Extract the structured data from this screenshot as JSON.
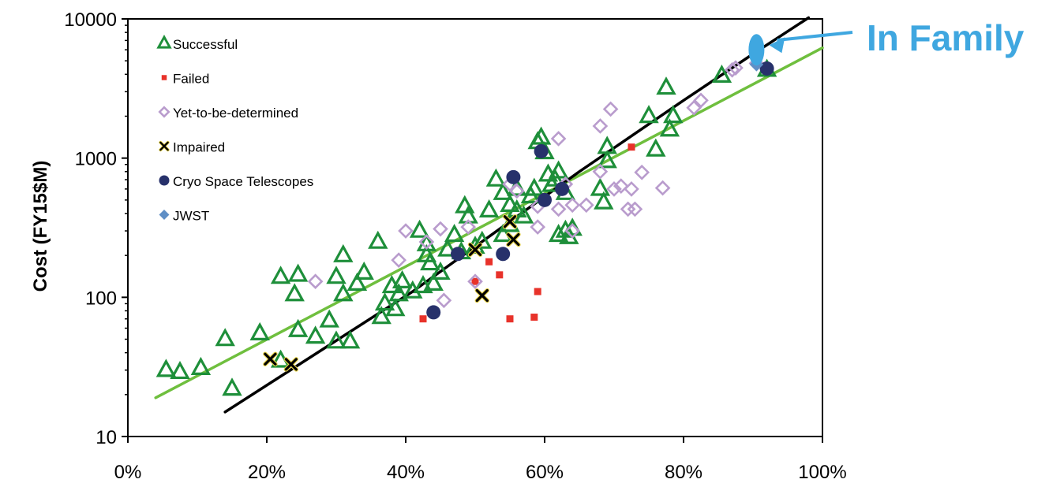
{
  "chart_data": {
    "type": "scatter",
    "ylabel": "Cost (FY15$M)",
    "xlabel": "",
    "x_ticks": [
      "0%",
      "20%",
      "40%",
      "60%",
      "80%",
      "100%"
    ],
    "y_ticks": [
      "10",
      "100",
      "1000",
      "10000"
    ],
    "xlim": [
      0,
      100
    ],
    "ylim": [
      10,
      10000
    ],
    "y_scale": "log",
    "grid": false,
    "legend_position": "top-left",
    "series": [
      {
        "name": "Successful",
        "marker": "triangle",
        "color": "#1e8f3a",
        "points": [
          [
            5.5,
            30
          ],
          [
            7.5,
            29
          ],
          [
            10.5,
            31
          ],
          [
            14,
            50
          ],
          [
            15,
            22
          ],
          [
            19,
            55
          ],
          [
            22,
            140
          ],
          [
            22,
            35
          ],
          [
            24,
            105
          ],
          [
            24.5,
            145
          ],
          [
            24.5,
            58
          ],
          [
            27,
            52
          ],
          [
            29,
            68
          ],
          [
            30,
            140
          ],
          [
            30,
            48
          ],
          [
            31,
            200
          ],
          [
            31,
            105
          ],
          [
            32,
            48
          ],
          [
            33,
            125
          ],
          [
            34,
            150
          ],
          [
            36,
            250
          ],
          [
            36.5,
            72
          ],
          [
            37,
            90
          ],
          [
            38,
            120
          ],
          [
            38.5,
            82
          ],
          [
            39,
            105
          ],
          [
            39.5,
            130
          ],
          [
            41,
            110
          ],
          [
            42,
            300
          ],
          [
            42.5,
            120
          ],
          [
            43,
            240
          ],
          [
            43,
            200
          ],
          [
            43.5,
            175
          ],
          [
            44,
            125
          ],
          [
            45,
            150
          ],
          [
            46,
            220
          ],
          [
            47,
            280
          ],
          [
            48,
            210
          ],
          [
            48.5,
            450
          ],
          [
            49,
            380
          ],
          [
            50,
            230
          ],
          [
            51,
            250
          ],
          [
            52,
            420
          ],
          [
            53,
            700
          ],
          [
            54,
            560
          ],
          [
            54,
            280
          ],
          [
            55,
            330
          ],
          [
            55,
            460
          ],
          [
            56,
            600
          ],
          [
            56,
            420
          ],
          [
            57,
            380
          ],
          [
            58,
            530
          ],
          [
            58.5,
            600
          ],
          [
            59,
            1300
          ],
          [
            59.5,
            1400
          ],
          [
            60,
            1100
          ],
          [
            60.5,
            760
          ],
          [
            61,
            640
          ],
          [
            61.5,
            700
          ],
          [
            62,
            800
          ],
          [
            62,
            280
          ],
          [
            63,
            560
          ],
          [
            63,
            300
          ],
          [
            63.5,
            270
          ],
          [
            64,
            310
          ],
          [
            68,
            600
          ],
          [
            68.5,
            480
          ],
          [
            69,
            1200
          ],
          [
            69,
            950
          ],
          [
            75,
            2000
          ],
          [
            76,
            1150
          ],
          [
            77.5,
            3200
          ],
          [
            78,
            1600
          ],
          [
            78.5,
            2000
          ],
          [
            85.5,
            3900
          ],
          [
            92,
            4300
          ]
        ]
      },
      {
        "name": "Failed",
        "marker": "square",
        "color": "#e8322a",
        "points": [
          [
            42.5,
            70
          ],
          [
            50,
            130
          ],
          [
            52,
            180
          ],
          [
            53.5,
            145
          ],
          [
            55,
            70
          ],
          [
            58.5,
            72
          ],
          [
            59,
            110
          ],
          [
            72.5,
            1200
          ]
        ]
      },
      {
        "name": "Yet-to-be-determined",
        "marker": "diamond",
        "color": "#b99ccd",
        "points": [
          [
            27,
            130
          ],
          [
            39,
            185
          ],
          [
            40,
            300
          ],
          [
            43,
            250
          ],
          [
            45,
            310
          ],
          [
            45.5,
            95
          ],
          [
            49,
            320
          ],
          [
            50,
            130
          ],
          [
            55,
            650
          ],
          [
            56,
            580
          ],
          [
            59,
            450
          ],
          [
            59,
            320
          ],
          [
            62,
            1380
          ],
          [
            62,
            430
          ],
          [
            63,
            650
          ],
          [
            64,
            300
          ],
          [
            64,
            460
          ],
          [
            66,
            460
          ],
          [
            68,
            800
          ],
          [
            68,
            1700
          ],
          [
            69.5,
            2250
          ],
          [
            70,
            600
          ],
          [
            71,
            630
          ],
          [
            72,
            430
          ],
          [
            72.5,
            600
          ],
          [
            73,
            430
          ],
          [
            74,
            790
          ],
          [
            77,
            610
          ],
          [
            81.5,
            2300
          ],
          [
            82.5,
            2600
          ],
          [
            87,
            4300
          ],
          [
            87.5,
            4450
          ],
          [
            90.5,
            4800
          ]
        ]
      },
      {
        "name": "Impaired",
        "marker": "x",
        "color": "#000000",
        "points": [
          [
            20.5,
            36
          ],
          [
            23.5,
            33
          ],
          [
            50,
            220
          ],
          [
            51,
            103
          ],
          [
            55,
            350
          ],
          [
            55.5,
            260
          ]
        ]
      },
      {
        "name": "Cryo Space Telescopes",
        "marker": "circle",
        "color": "#27316b",
        "points": [
          [
            44,
            78
          ],
          [
            47.5,
            205
          ],
          [
            54,
            205
          ],
          [
            55.5,
            730
          ],
          [
            59.5,
            1120
          ],
          [
            60,
            500
          ],
          [
            62.5,
            600
          ],
          [
            92,
            4400
          ]
        ]
      },
      {
        "name": "JWST",
        "marker": "diamond",
        "color": "#5f8fc6",
        "points": [
          [
            90.5,
            4700
          ]
        ]
      }
    ],
    "fit_lines": [
      {
        "color": "#6fbf3e",
        "points": [
          [
            4,
            19
          ],
          [
            100,
            6200
          ]
        ]
      },
      {
        "color": "#000000",
        "points": [
          [
            14,
            15
          ],
          [
            41,
            110
          ],
          [
            55,
            350
          ],
          [
            65,
            800
          ],
          [
            80,
            2600
          ],
          [
            90,
            5600
          ],
          [
            98,
            10200
          ]
        ]
      }
    ],
    "annotation": {
      "text": "In Family",
      "color": "#3fa7e0",
      "target": [
        90.5,
        6000
      ]
    }
  }
}
